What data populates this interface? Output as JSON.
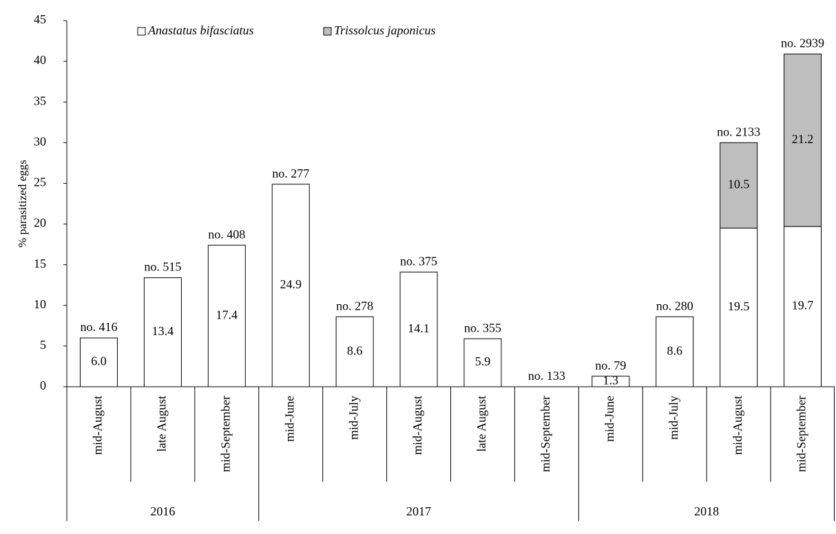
{
  "chart_data": {
    "type": "stacked_bar",
    "y_label": "% parasitized eggs",
    "groups": [
      {
        "name": "2016",
        "categories": [
          "mid-August",
          "late August",
          "mid-September"
        ]
      },
      {
        "name": "2017",
        "categories": [
          "mid-June",
          "mid-July",
          "mid-August",
          "late August",
          "mid-September"
        ]
      },
      {
        "name": "2018",
        "categories": [
          "mid-June",
          "mid-July",
          "mid-August",
          "mid-September"
        ]
      }
    ],
    "annotations": [
      "no. 416",
      "no. 515",
      "no. 408",
      "no. 277",
      "no. 278",
      "no. 375",
      "no. 355",
      "no. 133",
      "no. 79",
      "no. 280",
      "no. 2133",
      "no. 2939"
    ],
    "series": [
      {
        "name": "Anastatus bifasciatus",
        "color": "#ffffff",
        "values": [
          6.0,
          13.4,
          17.4,
          24.9,
          8.6,
          14.1,
          5.9,
          0,
          1.3,
          8.6,
          19.5,
          19.7
        ],
        "value_labels": [
          "6.0",
          "13.4",
          "17.4",
          "24.9",
          "8.6",
          "14.1",
          "5.9",
          null,
          "1.3",
          "8.6",
          "19.5",
          "19.7"
        ]
      },
      {
        "name": "Trissolcus japonicus",
        "color": "#bfbfbf",
        "values": [
          null,
          null,
          null,
          null,
          null,
          null,
          null,
          null,
          null,
          null,
          10.5,
          21.2
        ],
        "value_labels": [
          null,
          null,
          null,
          null,
          null,
          null,
          null,
          null,
          null,
          null,
          "10.5",
          "21.2"
        ]
      }
    ],
    "ylim": [
      0,
      45
    ],
    "yticks": [
      0,
      5,
      10,
      15,
      20,
      25,
      30,
      35,
      40,
      45
    ],
    "grid": false,
    "legend": "top-left"
  }
}
